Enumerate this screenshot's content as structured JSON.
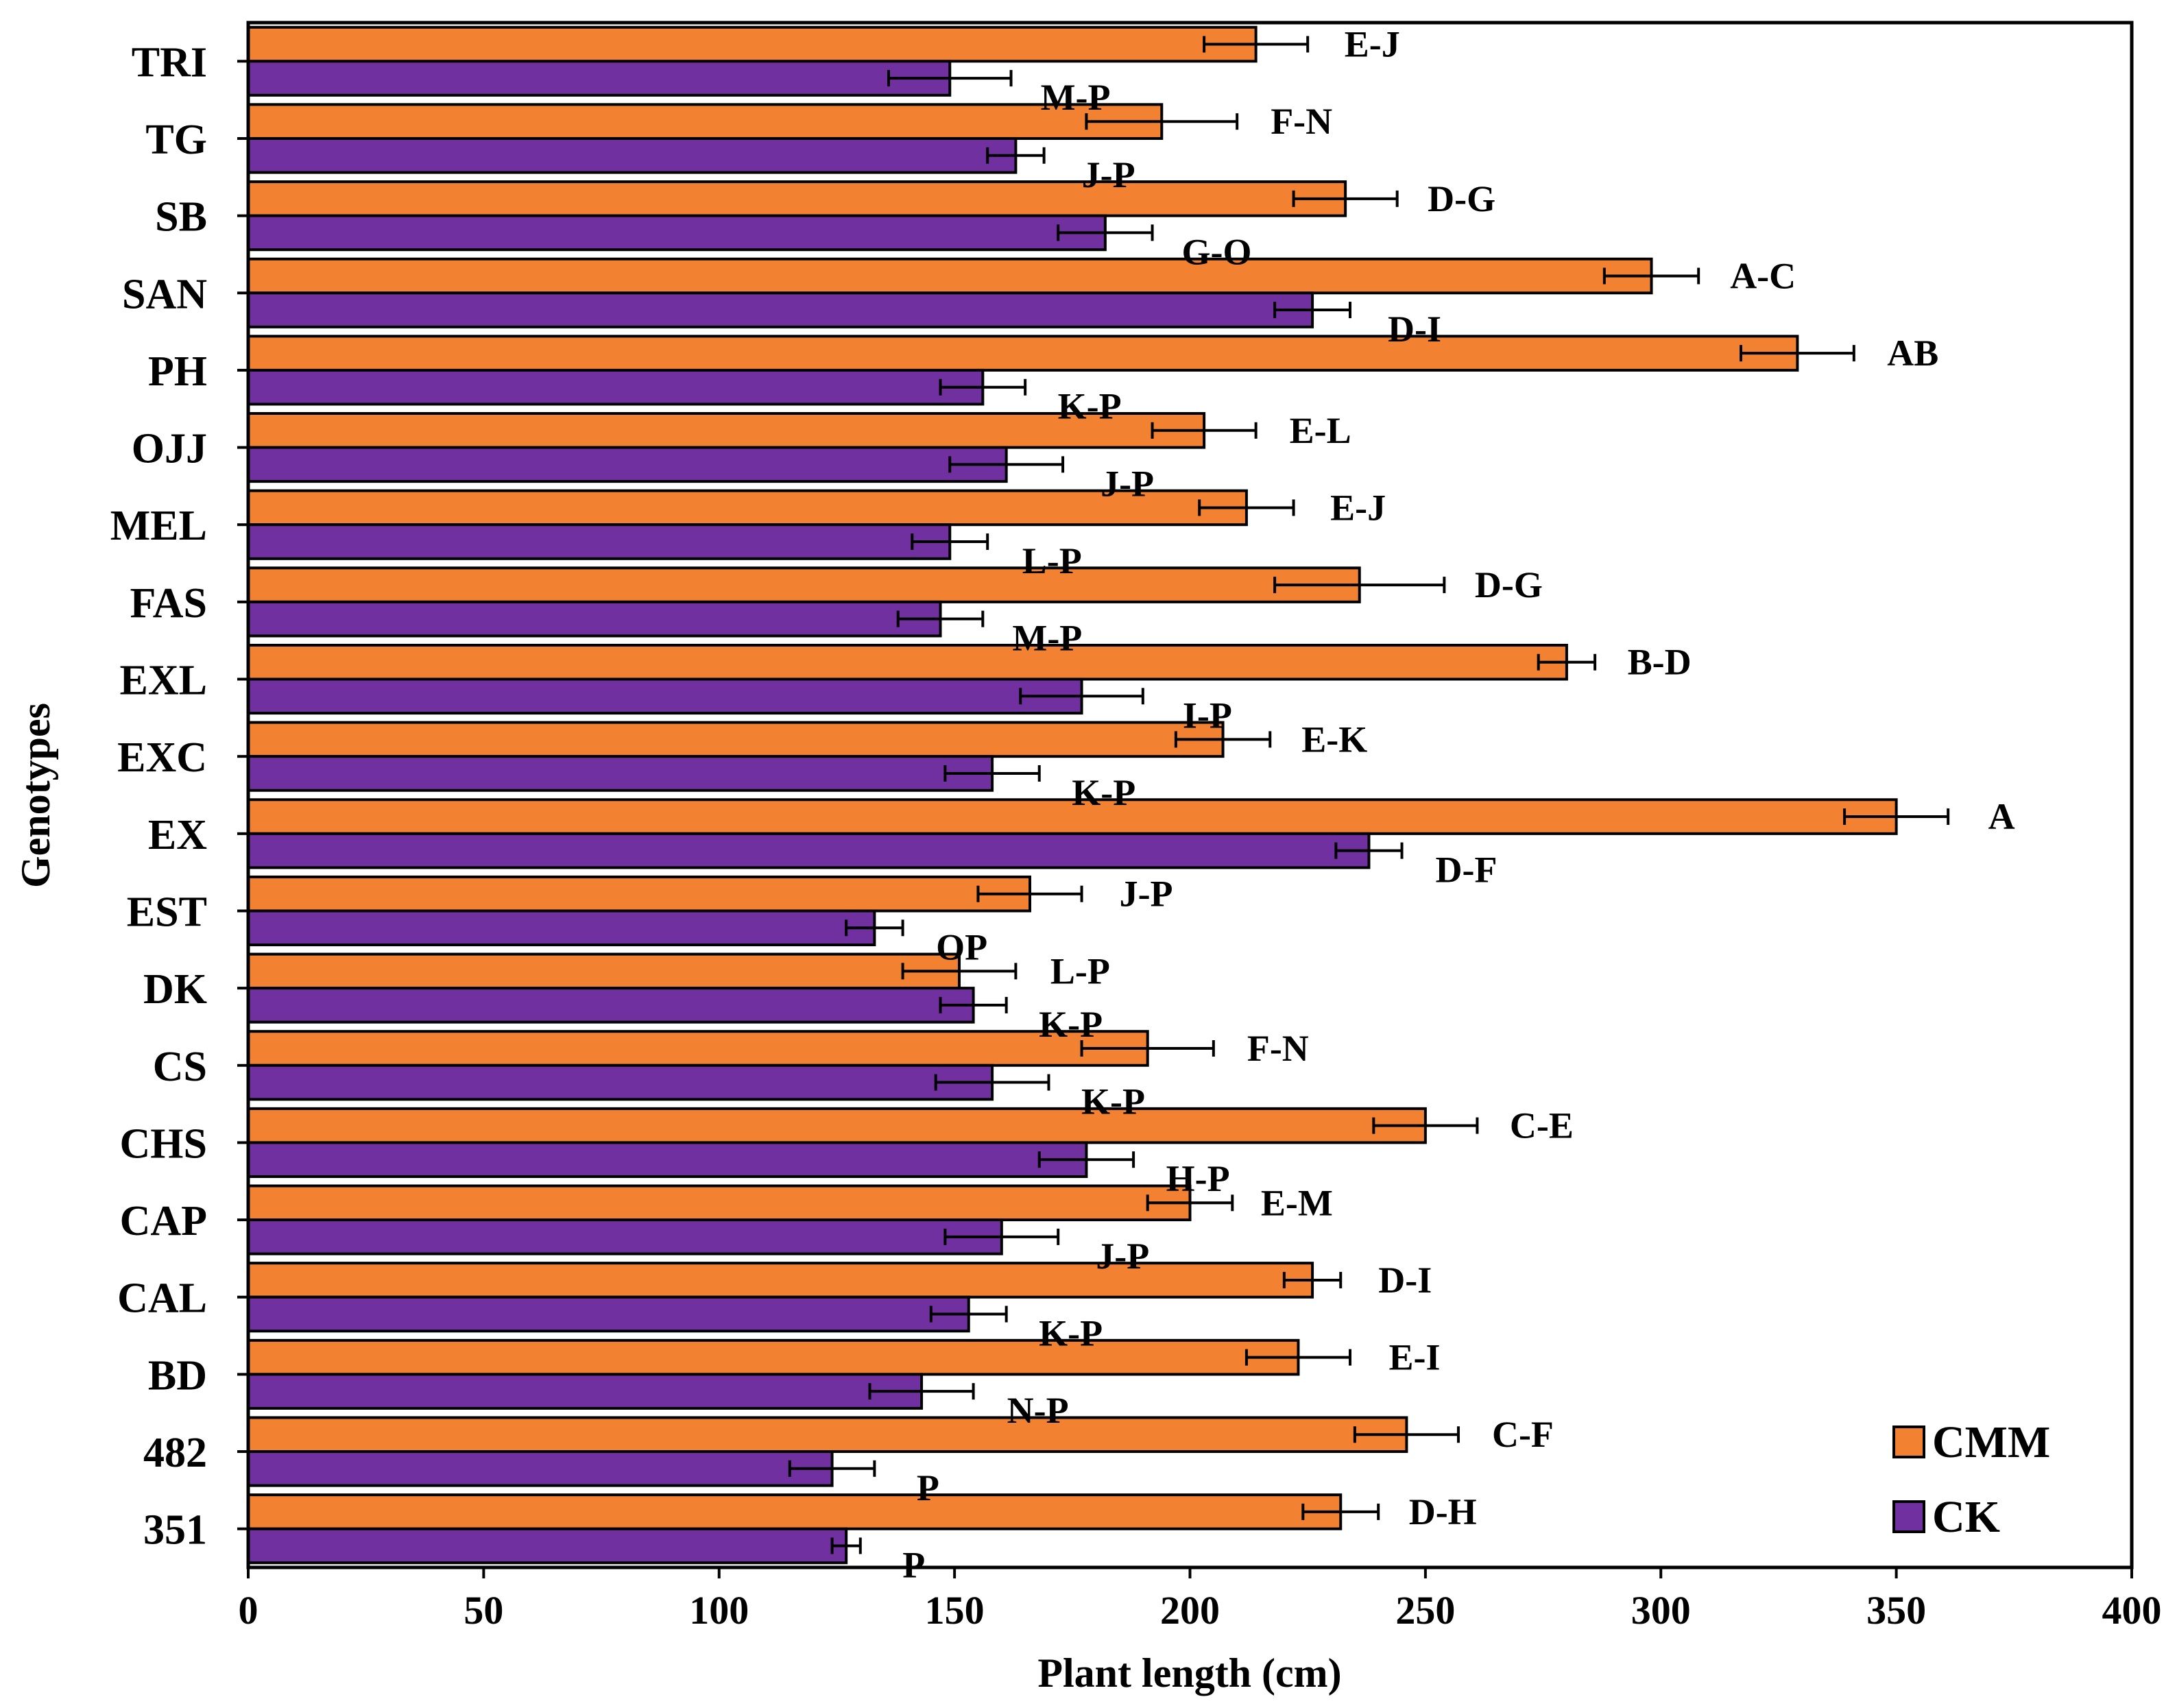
{
  "chart_data": {
    "type": "bar",
    "orientation": "horizontal",
    "xlabel": "Plant length (cm)",
    "ylabel": "Genotypes",
    "xlim": [
      0,
      400
    ],
    "xticks": [
      0,
      50,
      100,
      150,
      200,
      250,
      300,
      350,
      400
    ],
    "grid": false,
    "legend_position": "bottom-right",
    "categories": [
      "TRI",
      "TG",
      "SB",
      "SAN",
      "PH",
      "OJJ",
      "MEL",
      "FAS",
      "EXL",
      "EXC",
      "EX",
      "EST",
      "DK",
      "CS",
      "CHS",
      "CAP",
      "CAL",
      "BD",
      "482",
      "351"
    ],
    "series": [
      {
        "name": "CMM",
        "color": "#F28232",
        "values": [
          214,
          194,
          233,
          298,
          329,
          203,
          212,
          236,
          280,
          207,
          350,
          166,
          151,
          191,
          250,
          200,
          226,
          223,
          246,
          232
        ],
        "errors": [
          11,
          16,
          11,
          10,
          12,
          11,
          10,
          18,
          6,
          10,
          11,
          11,
          12,
          14,
          11,
          9,
          6,
          11,
          11,
          8
        ],
        "letters": [
          "E-J",
          "F-N",
          "D-G",
          "A-C",
          "AB",
          "E-L",
          "E-J",
          "D-G",
          "B-D",
          "E-K",
          "A",
          "J-P",
          "L-P",
          "F-N",
          "C-E",
          "E-M",
          "D-I",
          "E-I",
          "C-F",
          "D-H"
        ]
      },
      {
        "name": "CK",
        "color": "#7030A0",
        "values": [
          149,
          163,
          182,
          226,
          156,
          161,
          149,
          147,
          177,
          158,
          238,
          133,
          154,
          158,
          178,
          160,
          153,
          143,
          124,
          127
        ],
        "errors": [
          13,
          6,
          10,
          8,
          9,
          12,
          8,
          9,
          13,
          10,
          7,
          6,
          7,
          12,
          10,
          12,
          8,
          11,
          9,
          3
        ],
        "letters": [
          "M-P",
          "J-P",
          "G-O",
          "D-I",
          "K-P",
          "J-P",
          "L-P",
          "M-P",
          "I-P",
          "K-P",
          "D-F",
          "OP",
          "K-P",
          "K-P",
          "H-P",
          "J-P",
          "K-P",
          "N-P",
          "P",
          "P"
        ]
      }
    ]
  }
}
